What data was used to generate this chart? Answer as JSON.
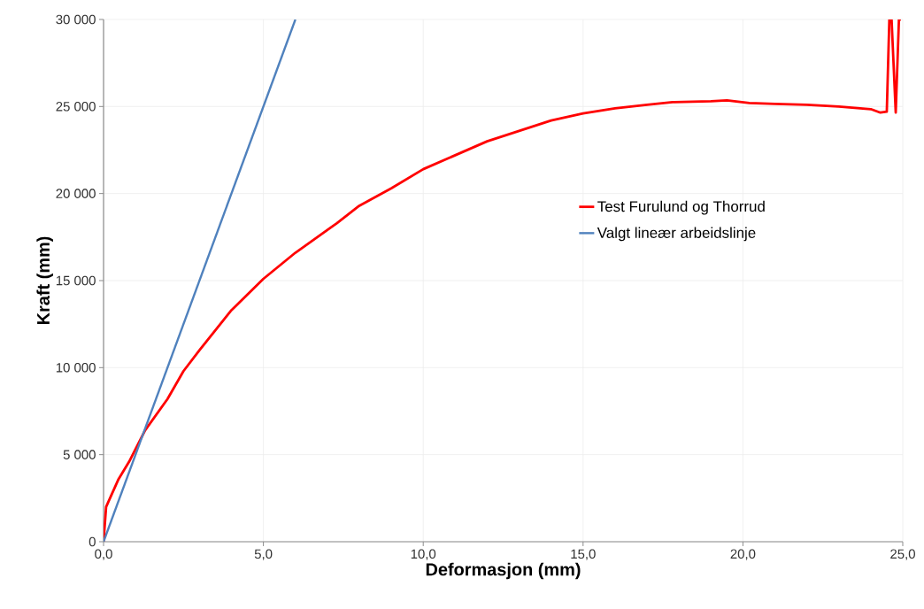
{
  "chart_data": {
    "type": "line",
    "xlabel": "Deformasjon (mm)",
    "ylabel": "Kraft (mm)",
    "xlim": [
      0,
      25
    ],
    "ylim": [
      0,
      30000
    ],
    "xticks": [
      {
        "value": 0,
        "label": "0,0"
      },
      {
        "value": 5,
        "label": "5,0"
      },
      {
        "value": 10,
        "label": "10,0"
      },
      {
        "value": 15,
        "label": "15,0"
      },
      {
        "value": 20,
        "label": "20,0"
      },
      {
        "value": 25,
        "label": "25,0"
      }
    ],
    "yticks": [
      {
        "value": 0,
        "label": "0"
      },
      {
        "value": 5000,
        "label": "5 000"
      },
      {
        "value": 10000,
        "label": "10 000"
      },
      {
        "value": 15000,
        "label": "15 000"
      },
      {
        "value": 20000,
        "label": "20 000"
      },
      {
        "value": 25000,
        "label": "25 000"
      },
      {
        "value": 30000,
        "label": "30 000"
      }
    ],
    "grid": true,
    "legend": "right",
    "marker": "none",
    "line_style": "solid",
    "series": [
      {
        "name": "Test Furulund og Thorrud",
        "color": "#ff0000",
        "x": [
          0,
          0.08,
          0.47,
          0.8,
          1.3,
          2,
          2.5,
          3,
          4,
          5,
          6,
          7.3,
          8,
          9,
          10,
          11,
          12,
          13,
          14,
          15,
          16,
          17,
          17.8,
          19,
          19.5,
          20.2,
          21,
          22,
          23,
          24,
          24.3,
          24.5,
          24.58,
          24.65,
          24.78,
          24.88,
          24.94
        ],
        "values": [
          0,
          2000,
          3600,
          4600,
          6400,
          8200,
          9800,
          11000,
          13300,
          15100,
          16600,
          18300,
          19300,
          20300,
          21400,
          22200,
          23000,
          23600,
          24200,
          24600,
          24900,
          25100,
          25250,
          25300,
          25350,
          25200,
          25150,
          25100,
          25000,
          24850,
          24650,
          24700,
          30000,
          30000,
          24650,
          30000,
          30000
        ]
      },
      {
        "name": "Valgt lineær arbeidslinje",
        "color": "#4f81bd",
        "x": [
          0,
          6
        ],
        "values": [
          0,
          30000
        ]
      }
    ]
  }
}
